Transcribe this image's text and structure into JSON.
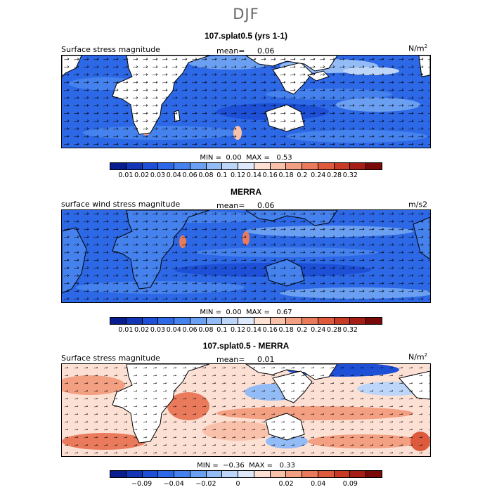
{
  "figure": {
    "title": "DJF"
  },
  "panels": [
    {
      "title": "107.splat0.5 (yrs 1-1)",
      "variable": "Surface stress magnitude",
      "mean_label": "mean=",
      "mean_value": "0.06",
      "units_base": "N/m",
      "units_sup": "2",
      "min_label": "MIN =",
      "min_value": "0.00",
      "max_label": "MAX =",
      "max_value": "0.53",
      "palette": "sequential"
    },
    {
      "title": "MERRA",
      "variable": "surface wind stress magnitude",
      "mean_label": "mean=",
      "mean_value": "0.06",
      "units_base": "m/s2",
      "units_sup": "",
      "min_label": "MIN =",
      "min_value": "0.00",
      "max_label": "MAX =",
      "max_value": "0.67",
      "palette": "sequential"
    },
    {
      "title": "107.splat0.5 - MERRA",
      "variable": "Surface stress magnitude",
      "mean_label": "mean=",
      "mean_value": "0.01",
      "units_base": "N/m",
      "units_sup": "2",
      "min_label": "MIN =",
      "min_value": "−0.36",
      "max_label": "MAX =",
      "max_value": "0.33",
      "palette": "diverging"
    }
  ],
  "colorbars": {
    "sequential": {
      "colors": [
        "#0a1d8e",
        "#1236b5",
        "#1d50d6",
        "#2d68e6",
        "#4582ee",
        "#6b9ff2",
        "#93bbf5",
        "#bcd5f8",
        "#dde9fb",
        "#fde0d4",
        "#f9c0aa",
        "#f39f82",
        "#e97b5c",
        "#dd5a3c",
        "#c73a26",
        "#a51d14",
        "#7a0a0a"
      ],
      "ticks": [
        "0.01",
        "0.02",
        "0.03",
        "0.04",
        "0.06",
        "0.08",
        "0.1",
        "0.12",
        "0.14",
        "0.16",
        "0.18",
        "0.2",
        "0.24",
        "0.28",
        "0.32"
      ]
    },
    "diverging": {
      "colors": [
        "#0a1d8e",
        "#1236b5",
        "#1d50d6",
        "#2d68e6",
        "#4582ee",
        "#6b9ff2",
        "#93bbf5",
        "#bcd5f8",
        "#dde9fb",
        "#fde0d4",
        "#f9c0aa",
        "#f39f82",
        "#e97b5c",
        "#dd5a3c",
        "#c73a26",
        "#a51d14",
        "#7a0a0a"
      ],
      "ticks": [
        "−0.09",
        "−0.04",
        "−0.02",
        "0",
        "0.02",
        "0.04",
        "0.09"
      ]
    }
  }
}
